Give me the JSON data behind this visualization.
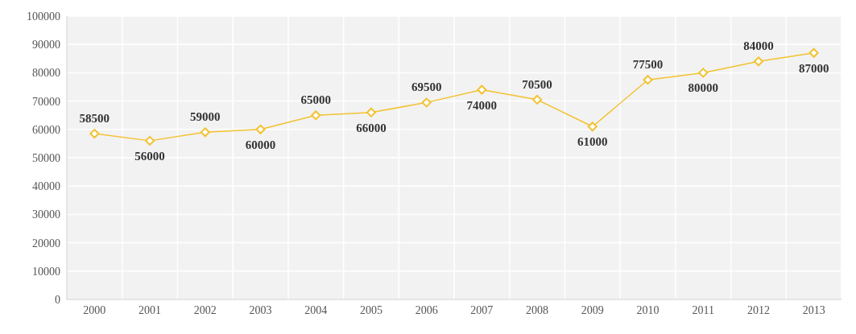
{
  "chart_data": {
    "type": "line",
    "categories": [
      "2000",
      "2001",
      "2002",
      "2003",
      "2004",
      "2005",
      "2006",
      "2007",
      "2008",
      "2009",
      "2010",
      "2011",
      "2012",
      "2013"
    ],
    "series": [
      {
        "color": "#f2c230",
        "values": [
          58500,
          56000,
          59000,
          60000,
          65000,
          66000,
          69500,
          74000,
          70500,
          61000,
          77500,
          80000,
          84000,
          87000
        ]
      }
    ],
    "ylim": [
      0,
      100000
    ],
    "yticks": [
      0,
      10000,
      20000,
      30000,
      40000,
      50000,
      60000,
      70000,
      80000,
      90000,
      100000
    ],
    "grid": true,
    "marker": "diamond",
    "data_labels": true,
    "line_style": "solid"
  }
}
